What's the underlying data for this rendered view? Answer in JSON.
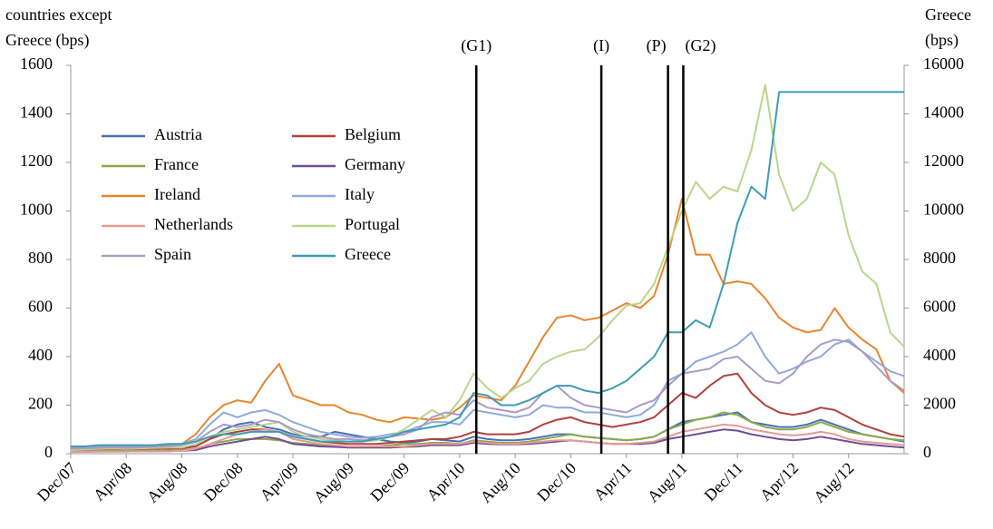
{
  "chart_data": {
    "type": "line",
    "ylabel": [
      "countries except",
      "Greece (bps)"
    ],
    "y2label": [
      "Greece",
      "(bps)"
    ],
    "categories": [
      "Dec/07",
      null,
      null,
      null,
      "Apr/08",
      null,
      null,
      null,
      "Aug/08",
      null,
      null,
      null,
      "Dec/08",
      null,
      null,
      null,
      "Apr/09",
      null,
      null,
      null,
      "Aug/09",
      null,
      null,
      null,
      "Dec/09",
      null,
      null,
      null,
      "Apr/10",
      null,
      null,
      null,
      "Aug/10",
      null,
      null,
      null,
      "Dec/10",
      null,
      null,
      null,
      "Apr/11",
      null,
      null,
      null,
      "Aug/11",
      null,
      null,
      null,
      "Dec/11",
      null,
      null,
      null,
      "Apr/12",
      null,
      null,
      null,
      "Aug/12",
      null,
      null,
      null,
      null
    ],
    "ylim": [
      0,
      1600
    ],
    "yticks": [
      0,
      200,
      400,
      600,
      800,
      1000,
      1200,
      1400,
      1600
    ],
    "y2lim": [
      0,
      16000
    ],
    "y2ticks": [
      0,
      2000,
      4000,
      6000,
      8000,
      10000,
      12000,
      14000,
      16000
    ],
    "annotations": [
      {
        "label": "(G1)",
        "x": 29.2
      },
      {
        "label": "(I)",
        "x": 38.2
      },
      {
        "label": "(P)",
        "x": 43.0
      },
      {
        "label": "(G2)",
        "x": 44.1
      }
    ],
    "series": [
      {
        "name": "Austria",
        "color": "#4a70b5",
        "values": [
          12,
          14,
          16,
          18,
          16,
          18,
          20,
          22,
          25,
          30,
          60,
          100,
          120,
          130,
          110,
          100,
          80,
          70,
          70,
          90,
          80,
          70,
          60,
          50,
          45,
          50,
          60,
          55,
          50,
          70,
          60,
          55,
          55,
          60,
          70,
          80,
          80,
          70,
          65,
          60,
          55,
          60,
          70,
          100,
          130,
          140,
          150,
          160,
          170,
          130,
          120,
          110,
          110,
          120,
          140,
          120,
          100,
          80,
          70,
          60,
          50
        ]
      },
      {
        "name": "Belgium",
        "color": "#b0413e",
        "values": [
          12,
          14,
          16,
          18,
          16,
          18,
          20,
          20,
          22,
          30,
          60,
          80,
          90,
          100,
          100,
          90,
          70,
          60,
          50,
          45,
          40,
          40,
          40,
          45,
          50,
          55,
          60,
          60,
          70,
          90,
          80,
          80,
          80,
          90,
          120,
          140,
          150,
          130,
          120,
          110,
          120,
          130,
          150,
          200,
          250,
          230,
          280,
          320,
          330,
          250,
          200,
          170,
          160,
          170,
          190,
          180,
          150,
          120,
          100,
          80,
          70
        ]
      },
      {
        "name": "France",
        "color": "#8aaa47",
        "values": [
          10,
          10,
          12,
          12,
          12,
          12,
          14,
          14,
          15,
          20,
          40,
          50,
          60,
          60,
          60,
          55,
          45,
          40,
          35,
          30,
          30,
          30,
          30,
          35,
          40,
          40,
          45,
          45,
          40,
          55,
          50,
          45,
          45,
          50,
          60,
          70,
          80,
          70,
          65,
          60,
          55,
          60,
          70,
          100,
          120,
          140,
          150,
          170,
          160,
          130,
          110,
          100,
          100,
          110,
          130,
          110,
          90,
          80,
          70,
          60,
          55
        ]
      },
      {
        "name": "Germany",
        "color": "#6e4f93",
        "values": [
          8,
          8,
          9,
          9,
          9,
          10,
          10,
          10,
          12,
          15,
          30,
          40,
          50,
          60,
          70,
          60,
          40,
          35,
          30,
          28,
          25,
          25,
          25,
          25,
          28,
          30,
          35,
          35,
          35,
          45,
          40,
          38,
          38,
          40,
          45,
          50,
          55,
          50,
          45,
          40,
          40,
          40,
          45,
          60,
          70,
          80,
          90,
          100,
          95,
          80,
          70,
          60,
          55,
          60,
          70,
          60,
          50,
          40,
          35,
          30,
          25
        ]
      },
      {
        "name": "Ireland",
        "color": "#e8852e",
        "values": [
          15,
          18,
          22,
          25,
          22,
          25,
          28,
          35,
          40,
          80,
          150,
          200,
          220,
          210,
          300,
          370,
          240,
          220,
          200,
          200,
          170,
          160,
          140,
          130,
          150,
          145,
          140,
          150,
          190,
          240,
          230,
          220,
          280,
          380,
          480,
          560,
          570,
          550,
          560,
          590,
          620,
          600,
          650,
          820,
          1050,
          820,
          820,
          700,
          710,
          700,
          640,
          560,
          520,
          500,
          510,
          600,
          520,
          470,
          430,
          300,
          250
        ]
      },
      {
        "name": "Italy",
        "color": "#8eaadb",
        "values": [
          25,
          28,
          30,
          32,
          30,
          32,
          35,
          38,
          40,
          60,
          120,
          170,
          150,
          170,
          180,
          160,
          130,
          110,
          90,
          80,
          70,
          65,
          70,
          80,
          90,
          110,
          130,
          130,
          120,
          180,
          170,
          160,
          150,
          160,
          200,
          190,
          190,
          170,
          170,
          160,
          150,
          160,
          200,
          300,
          330,
          380,
          400,
          420,
          450,
          500,
          400,
          330,
          350,
          380,
          400,
          450,
          470,
          420,
          380,
          340,
          320
        ]
      },
      {
        "name": "Netherlands",
        "color": "#e59a96",
        "values": [
          8,
          8,
          9,
          9,
          9,
          10,
          10,
          10,
          12,
          20,
          40,
          60,
          80,
          90,
          100,
          90,
          60,
          50,
          40,
          35,
          30,
          30,
          30,
          30,
          30,
          35,
          40,
          40,
          40,
          50,
          45,
          40,
          40,
          45,
          50,
          55,
          55,
          50,
          45,
          40,
          40,
          45,
          50,
          70,
          90,
          100,
          110,
          120,
          115,
          100,
          90,
          80,
          75,
          80,
          90,
          80,
          60,
          50,
          45,
          40,
          35
        ]
      },
      {
        "name": "Portugal",
        "color": "#b8d68b",
        "values": [
          15,
          18,
          20,
          22,
          20,
          22,
          24,
          25,
          25,
          40,
          70,
          90,
          100,
          110,
          120,
          130,
          90,
          70,
          60,
          55,
          50,
          50,
          55,
          70,
          100,
          140,
          180,
          150,
          220,
          330,
          270,
          230,
          270,
          300,
          370,
          400,
          420,
          430,
          480,
          550,
          610,
          620,
          700,
          850,
          1000,
          1120,
          1050,
          1100,
          1080,
          1250,
          1520,
          1150,
          1000,
          1050,
          1200,
          1150,
          900,
          750,
          700,
          500,
          440
        ]
      },
      {
        "name": "Spain",
        "color": "#a99bc6",
        "values": [
          20,
          22,
          24,
          26,
          24,
          26,
          28,
          30,
          35,
          50,
          90,
          120,
          110,
          120,
          140,
          130,
          100,
          80,
          70,
          60,
          60,
          55,
          60,
          70,
          80,
          100,
          150,
          170,
          160,
          220,
          190,
          180,
          170,
          190,
          250,
          280,
          230,
          200,
          190,
          180,
          170,
          200,
          220,
          280,
          330,
          340,
          350,
          390,
          400,
          350,
          300,
          290,
          330,
          400,
          450,
          470,
          460,
          420,
          360,
          300,
          260
        ]
      },
      {
        "name": "Greece",
        "color": "#3f9cb3",
        "axis": "y2",
        "values": [
          300,
          300,
          350,
          350,
          350,
          350,
          350,
          400,
          400,
          500,
          700,
          800,
          800,
          900,
          900,
          900,
          700,
          600,
          500,
          500,
          500,
          500,
          600,
          700,
          900,
          1000,
          1100,
          1200,
          1500,
          2500,
          2400,
          2000,
          2000,
          2200,
          2500,
          2800,
          2800,
          2600,
          2500,
          2700,
          3000,
          3500,
          4000,
          5000,
          5000,
          5500,
          5200,
          7000,
          9500,
          11000,
          10500,
          14900,
          14900,
          14900,
          14900,
          14900,
          14900,
          14900,
          14900,
          14900,
          14900
        ]
      }
    ]
  }
}
